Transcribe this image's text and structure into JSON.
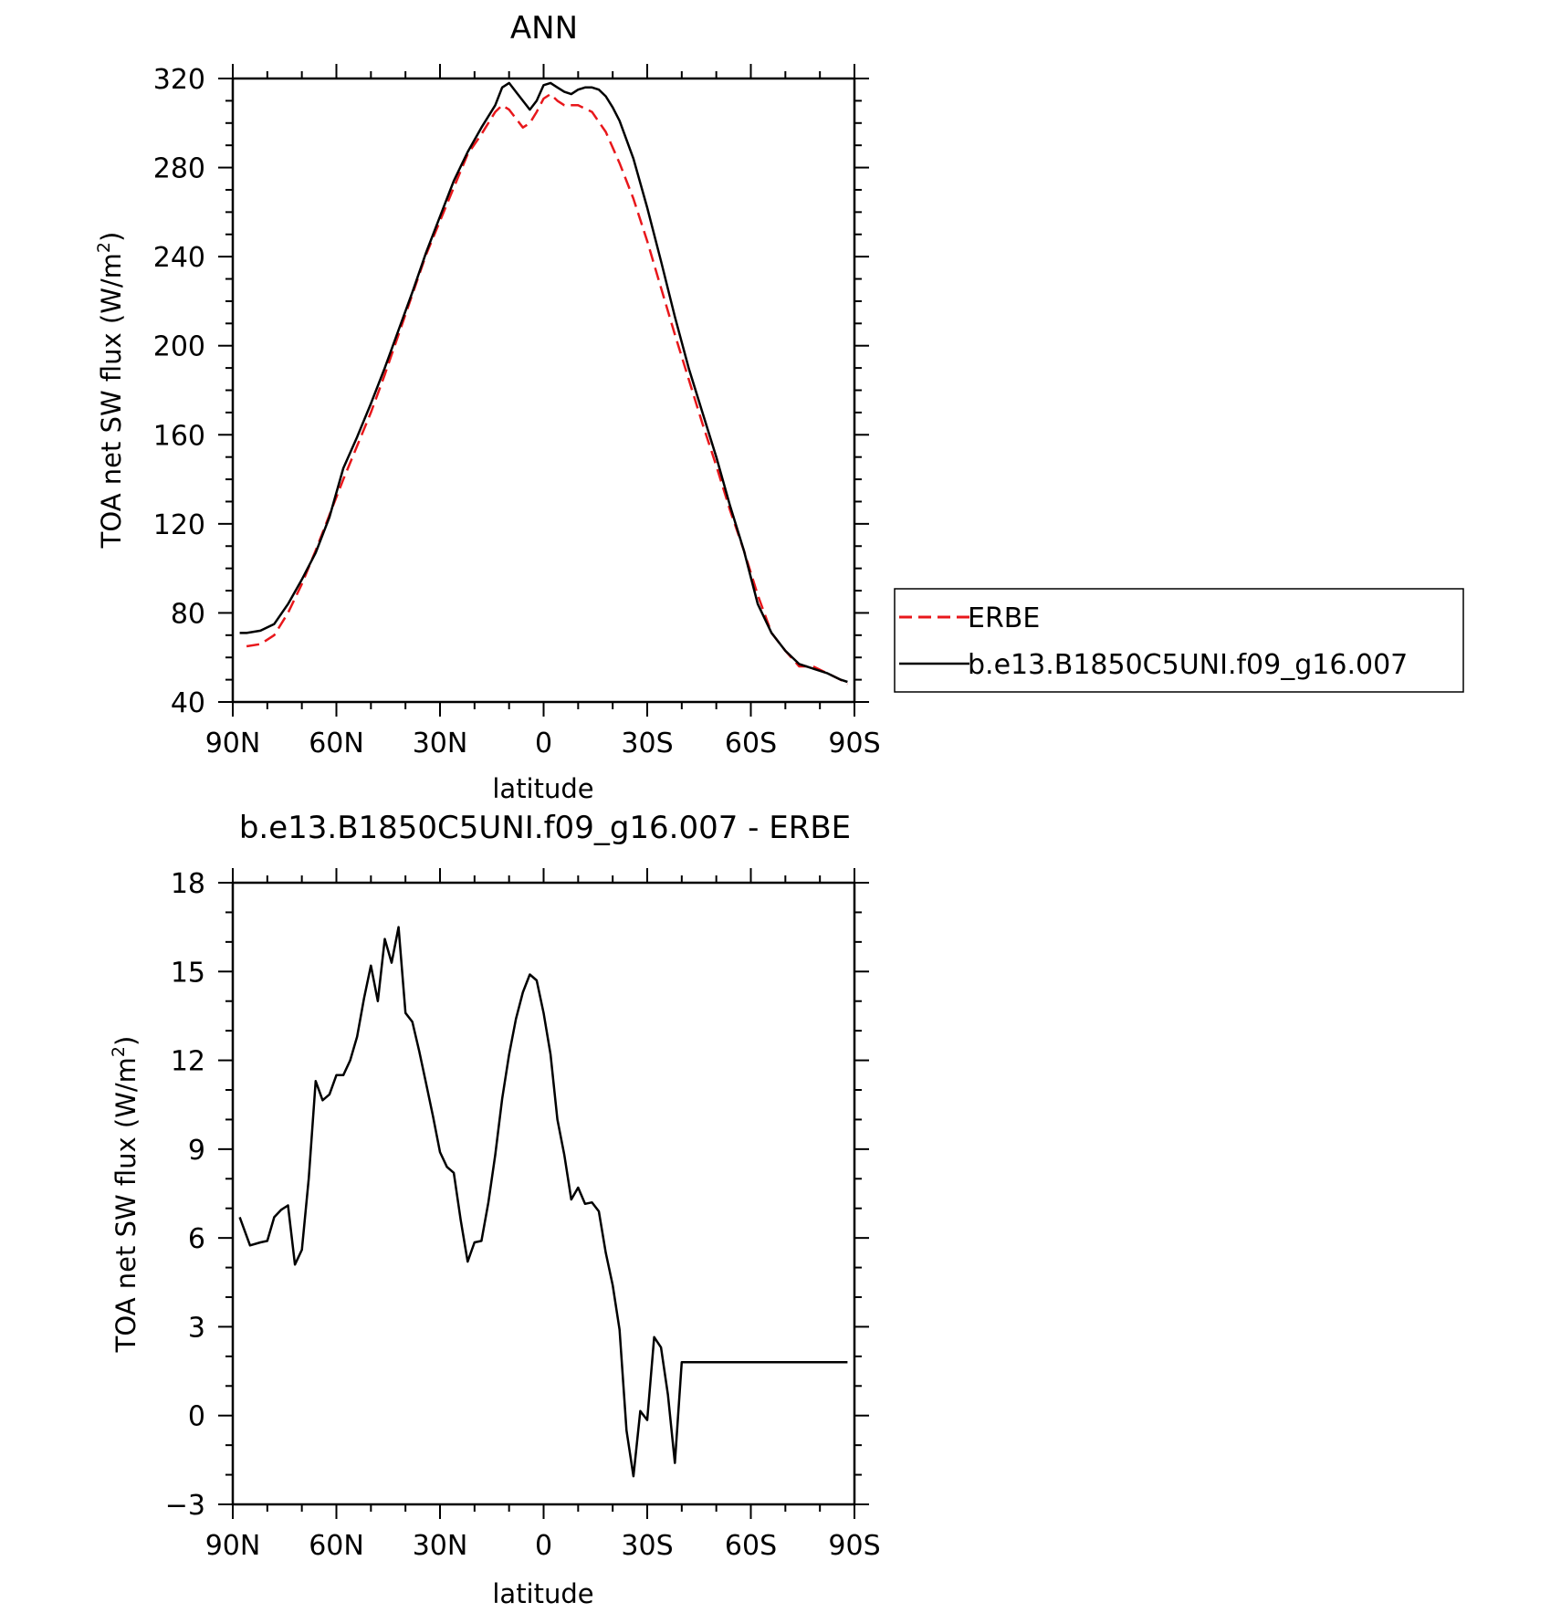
{
  "chart_data": [
    {
      "type": "line",
      "title": "ANN",
      "xlabel": "latitude",
      "ylabel": "TOA net SW flux (W/m",
      "ylabel_sup": "2",
      "ylabel_close": ")",
      "xlim": [
        90,
        -90
      ],
      "ylim": [
        40,
        320
      ],
      "x_ticks": [
        {
          "value": 90,
          "label": "90N"
        },
        {
          "value": 60,
          "label": "60N"
        },
        {
          "value": 30,
          "label": "30N"
        },
        {
          "value": 0,
          "label": "0"
        },
        {
          "value": -30,
          "label": "30S"
        },
        {
          "value": -60,
          "label": "60S"
        },
        {
          "value": -90,
          "label": "90S"
        }
      ],
      "y_ticks": [
        40,
        80,
        120,
        160,
        200,
        240,
        280,
        320
      ],
      "y_tick_labels": [
        "40",
        "80",
        "120",
        "160",
        "200",
        "240",
        "280",
        "320"
      ],
      "legend": {
        "placement": "right",
        "entries": [
          "ERBE",
          "b.e13.B1850C5UNI.f09_g16.007"
        ]
      },
      "series": [
        {
          "name": "ERBE",
          "color": "#e8171b",
          "dash": "dashed",
          "x": [
            86,
            82,
            78,
            74,
            70,
            66,
            62,
            58,
            54,
            50,
            46,
            42,
            38,
            34,
            30,
            26,
            22,
            18,
            14,
            12,
            10,
            6,
            4,
            2,
            0,
            -2,
            -4,
            -6,
            -10,
            -14,
            -18,
            -22,
            -26,
            -30,
            -34,
            -38,
            -42,
            -46,
            -50,
            -54,
            -58,
            -62,
            -66,
            -70,
            -74,
            -78,
            -82,
            -86,
            -88
          ],
          "y": [
            65,
            66,
            70,
            80,
            93,
            108,
            124,
            140,
            155,
            170,
            187,
            205,
            223,
            241,
            256,
            271,
            286,
            295,
            305,
            308,
            306,
            298,
            300,
            305,
            311,
            313,
            310,
            308,
            308,
            305,
            296,
            282,
            266,
            247,
            226,
            205,
            185,
            165,
            146,
            126,
            108,
            88,
            71,
            63,
            56,
            56,
            53,
            50,
            48
          ]
        },
        {
          "name": "b.e13.B1850C5UNI.f09_g16.007",
          "color": "#000000",
          "dash": "solid",
          "x": [
            88,
            86,
            82,
            78,
            74,
            70,
            66,
            62,
            58,
            54,
            50,
            46,
            42,
            38,
            34,
            30,
            26,
            22,
            18,
            14,
            12,
            10,
            8,
            6,
            4,
            2,
            0,
            -2,
            -4,
            -6,
            -8,
            -10,
            -12,
            -14,
            -16,
            -18,
            -20,
            -22,
            -26,
            -30,
            -34,
            -38,
            -42,
            -46,
            -50,
            -54,
            -58,
            -62,
            -66,
            -70,
            -74,
            -78,
            -82,
            -86,
            -88
          ],
          "y": [
            71,
            71,
            72,
            75,
            84,
            95,
            107,
            123,
            145,
            159,
            174,
            190,
            207,
            224,
            242,
            258,
            274,
            287,
            298,
            308,
            316,
            318,
            314,
            310,
            306,
            310,
            317,
            318,
            316,
            314,
            313,
            315,
            316,
            316,
            315,
            312,
            307,
            301,
            284,
            262,
            238,
            213,
            190,
            170,
            150,
            128,
            108,
            84,
            71,
            63,
            57,
            55,
            53,
            50,
            49
          ]
        }
      ]
    },
    {
      "type": "line",
      "title": "b.e13.B1850C5UNI.f09_g16.007 - ERBE",
      "xlabel": "latitude",
      "ylabel": "TOA net SW flux (W/m",
      "ylabel_sup": "2",
      "ylabel_close": ")",
      "xlim": [
        90,
        -90
      ],
      "ylim": [
        -3,
        18
      ],
      "x_ticks": [
        {
          "value": 90,
          "label": "90N"
        },
        {
          "value": 60,
          "label": "60N"
        },
        {
          "value": 30,
          "label": "30N"
        },
        {
          "value": 0,
          "label": "0"
        },
        {
          "value": -30,
          "label": "30S"
        },
        {
          "value": -60,
          "label": "60S"
        },
        {
          "value": -90,
          "label": "90S"
        }
      ],
      "y_ticks": [
        -3,
        0,
        3,
        6,
        9,
        12,
        15,
        18
      ],
      "y_tick_labels": [
        "−3",
        "0",
        "3",
        "6",
        "9",
        "12",
        "15",
        "18"
      ],
      "series": [
        {
          "color": "#000000",
          "dash": "solid",
          "x": [
            88,
            85,
            82,
            80,
            78,
            76,
            74,
            72,
            70,
            68,
            66,
            64,
            62,
            60,
            58,
            56,
            54,
            52,
            50,
            48,
            46,
            44,
            42,
            40,
            38,
            36,
            34,
            32,
            30,
            28,
            26,
            24,
            22,
            20,
            18,
            16,
            14,
            12,
            10,
            8,
            6,
            4,
            2,
            0,
            -2,
            -4,
            -6,
            -8,
            -10,
            -12,
            -14,
            -16,
            -18,
            -20,
            -22,
            -24,
            -26,
            -28,
            -30,
            -32,
            -34,
            -36,
            -38,
            -40,
            -42,
            -44,
            -46,
            -48,
            -50,
            -52,
            -54,
            -56,
            -58,
            -60,
            -62,
            -64,
            -66,
            -68,
            -70,
            -72,
            -74,
            -76,
            -78,
            -80,
            -82,
            -84,
            -86,
            -88
          ],
          "y": [
            6.7,
            5.75,
            5.85,
            5.9,
            6.7,
            6.95,
            7.1,
            5.1,
            5.6,
            8.0,
            11.3,
            10.65,
            10.85,
            11.5,
            11.5,
            12.0,
            12.8,
            14.1,
            15.2,
            14.0,
            16.1,
            15.3,
            16.5,
            13.6,
            13.3,
            12.3,
            11.2,
            10.1,
            8.9,
            8.4,
            8.2,
            6.6,
            5.2,
            5.85,
            5.9,
            7.2,
            8.8,
            10.7,
            12.2,
            13.4,
            14.3,
            14.9,
            14.7,
            13.6,
            12.2,
            10.0,
            8.8,
            7.3,
            7.7,
            7.15,
            7.2,
            6.9,
            5.5,
            4.4,
            2.9,
            -0.5,
            -2.05,
            0.15,
            -0.15,
            2.65,
            2.3,
            0.7,
            -1.6,
            1.8,
            1.8,
            1.8,
            1.8,
            1.8,
            1.8,
            1.8,
            1.8,
            1.8,
            1.8,
            1.8,
            1.8,
            1.8,
            1.8,
            1.8,
            1.8,
            1.8,
            1.8,
            1.8,
            1.8,
            1.8,
            1.8,
            1.8,
            1.8,
            1.8
          ]
        }
      ]
    }
  ]
}
